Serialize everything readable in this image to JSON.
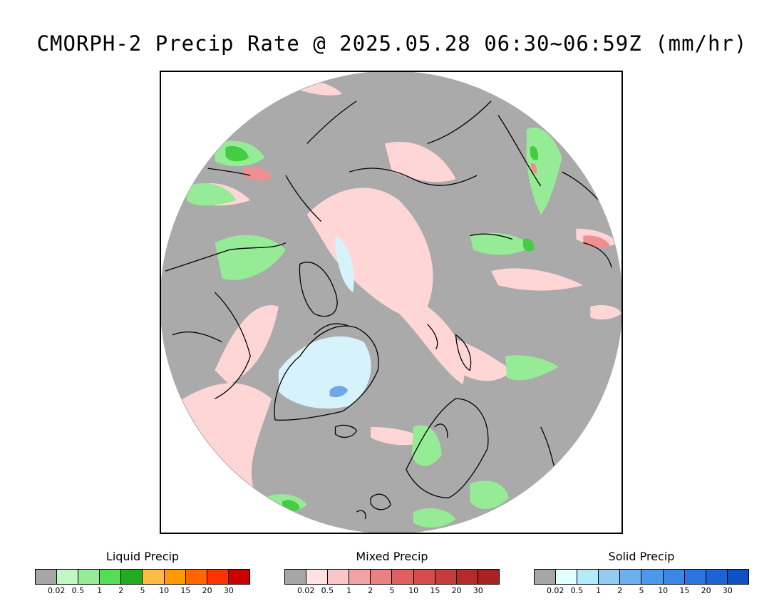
{
  "title": "CMORPH-2 Precip Rate @ 2025.05.28 06:30~06:59Z (mm/hr)",
  "map": {
    "projection": "polar-stereographic-north",
    "background_color": "#aaaaaa",
    "coastline_color": "#000000"
  },
  "legends": [
    {
      "title": "Liquid Precip",
      "colors": [
        "#a6a6a6",
        "#c4f5c4",
        "#96ec96",
        "#55dd55",
        "#22aa22",
        "#ffbb44",
        "#ff9900",
        "#ff6600",
        "#ff3300",
        "#cc0000"
      ],
      "tick_labels": [
        "0.02",
        "0.5",
        "1",
        "2",
        "5",
        "10",
        "15",
        "20",
        "30"
      ]
    },
    {
      "title": "Mixed Precip",
      "colors": [
        "#a6a6a6",
        "#ffe2e2",
        "#fbc6c6",
        "#f2a2a2",
        "#e88282",
        "#df6060",
        "#d44c4c",
        "#c63c3c",
        "#b52a2a",
        "#a82222"
      ],
      "tick_labels": [
        "0.02",
        "0.5",
        "1",
        "2",
        "5",
        "10",
        "15",
        "20",
        "30"
      ]
    },
    {
      "title": "Solid Precip",
      "colors": [
        "#a6a6a6",
        "#e2ffff",
        "#b2ecf8",
        "#92ccf5",
        "#6cb0f0",
        "#4c98ec",
        "#3a88e6",
        "#2a76de",
        "#1c64d4",
        "#1050c6"
      ],
      "tick_labels": [
        "0.02",
        "0.5",
        "1",
        "2",
        "5",
        "10",
        "15",
        "20",
        "30"
      ]
    }
  ]
}
